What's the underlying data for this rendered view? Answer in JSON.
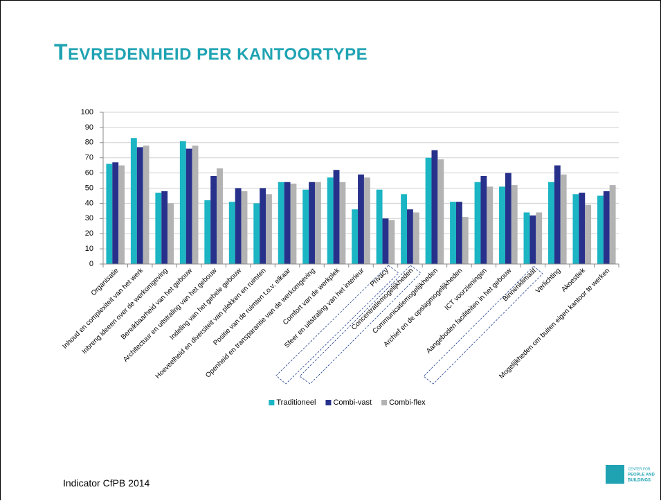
{
  "chart_data": {
    "type": "bar",
    "title": "TEVREDENHEID PER KANTOORTYPE",
    "categories": [
      "Organisatie",
      "Inhoud en complexiteit van het werk",
      "Inbreng ideeen over de werkomgeving",
      "Bereikbaarheid van het gebouw",
      "Architectuur en uitstraling van het gebouw",
      "Indeling van het gehele gebouw",
      "Hoeveelheid en diversiteit van plekken en ruimten",
      "Positie van de ruimten t.o.v. elkaar",
      "Openheid en transparantie van de werkomgeving",
      "Comfort van de werkplek",
      "Sfeer en uitstraling van het interieur",
      "Privacy",
      "Concentratiemogelijkheden",
      "Communicatiemogelijkheden",
      "Archief en de opslagmogelijkheden",
      "ICT voorzieningen",
      "Aangeboden faciliteiten in het gebouw",
      "Binnenklimaat",
      "Verlichting",
      "Akoestiek",
      "Mogelijkheden om buiten eigen kantoor te werken"
    ],
    "series": [
      {
        "name": "Traditioneel",
        "color": "#1bb5c4",
        "values": [
          66,
          83,
          47,
          81,
          42,
          41,
          40,
          54,
          49,
          57,
          36,
          49,
          46,
          70,
          41,
          54,
          51,
          34,
          54,
          46,
          45
        ]
      },
      {
        "name": "Combi-vast",
        "color": "#27318b",
        "values": [
          67,
          77,
          48,
          76,
          58,
          50,
          50,
          54,
          54,
          62,
          59,
          30,
          36,
          75,
          41,
          58,
          60,
          32,
          65,
          47,
          48
        ]
      },
      {
        "name": "Combi-flex",
        "color": "#b3b3b3",
        "values": [
          65,
          78,
          40,
          78,
          63,
          48,
          46,
          53,
          54,
          54,
          57,
          29,
          34,
          69,
          31,
          51,
          52,
          34,
          59,
          39,
          52
        ]
      }
    ],
    "ylim": [
      0,
      100
    ],
    "yticks": [
      0,
      10,
      20,
      30,
      40,
      50,
      60,
      70,
      80,
      90,
      100
    ],
    "grid": true,
    "legend": "bottom"
  },
  "footer": "Indicator CfPB 2014",
  "logo": [
    "CENTER FOR",
    "PEOPLE AND",
    "BUILDINGS"
  ]
}
